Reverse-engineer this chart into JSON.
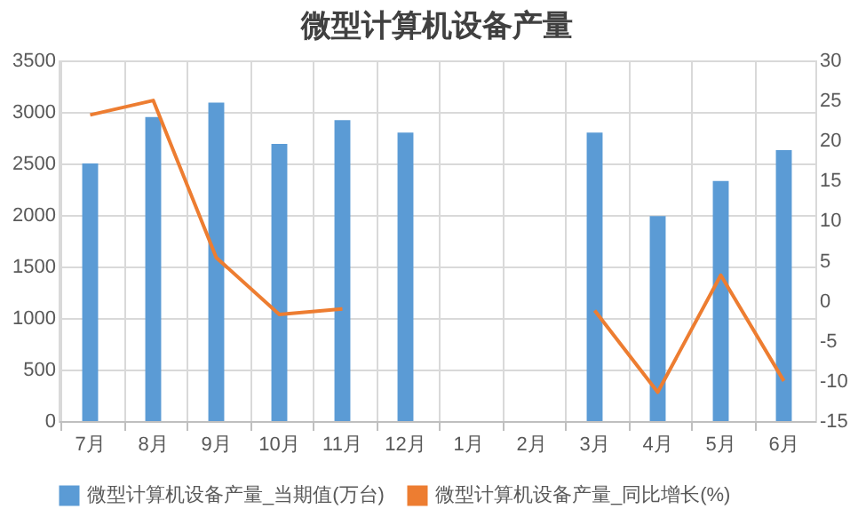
{
  "chart_data": {
    "type": "bar",
    "title": "微型计算机设备产量",
    "categories": [
      "7月",
      "8月",
      "9月",
      "10月",
      "11月",
      "12月",
      "1月",
      "2月",
      "3月",
      "4月",
      "5月",
      "6月"
    ],
    "series": [
      {
        "name": "微型计算机设备产量_当期值(万台)",
        "color": "#5b9bd5",
        "values": [
          2500,
          2950,
          3090,
          2690,
          2920,
          2800,
          null,
          null,
          2800,
          1990,
          2330,
          2630
        ]
      },
      {
        "name": "微型计算机设备产量_同比增长(%)",
        "type": "line",
        "axis": "y2",
        "color": "#ed7d31",
        "values": [
          23.2,
          25,
          5.4,
          -1.7,
          -1,
          null,
          null,
          null,
          -1.2,
          -11.4,
          3.2,
          -10
        ]
      }
    ],
    "ylim": [
      0,
      3500
    ],
    "yticks": [
      0,
      500,
      1000,
      1500,
      2000,
      2500,
      3000,
      3500
    ],
    "y2lim": [
      -15,
      30
    ],
    "y2ticks": [
      -15,
      -10,
      -5,
      0,
      5,
      10,
      15,
      20,
      25,
      30
    ],
    "grid": true,
    "legend": "bottom"
  }
}
